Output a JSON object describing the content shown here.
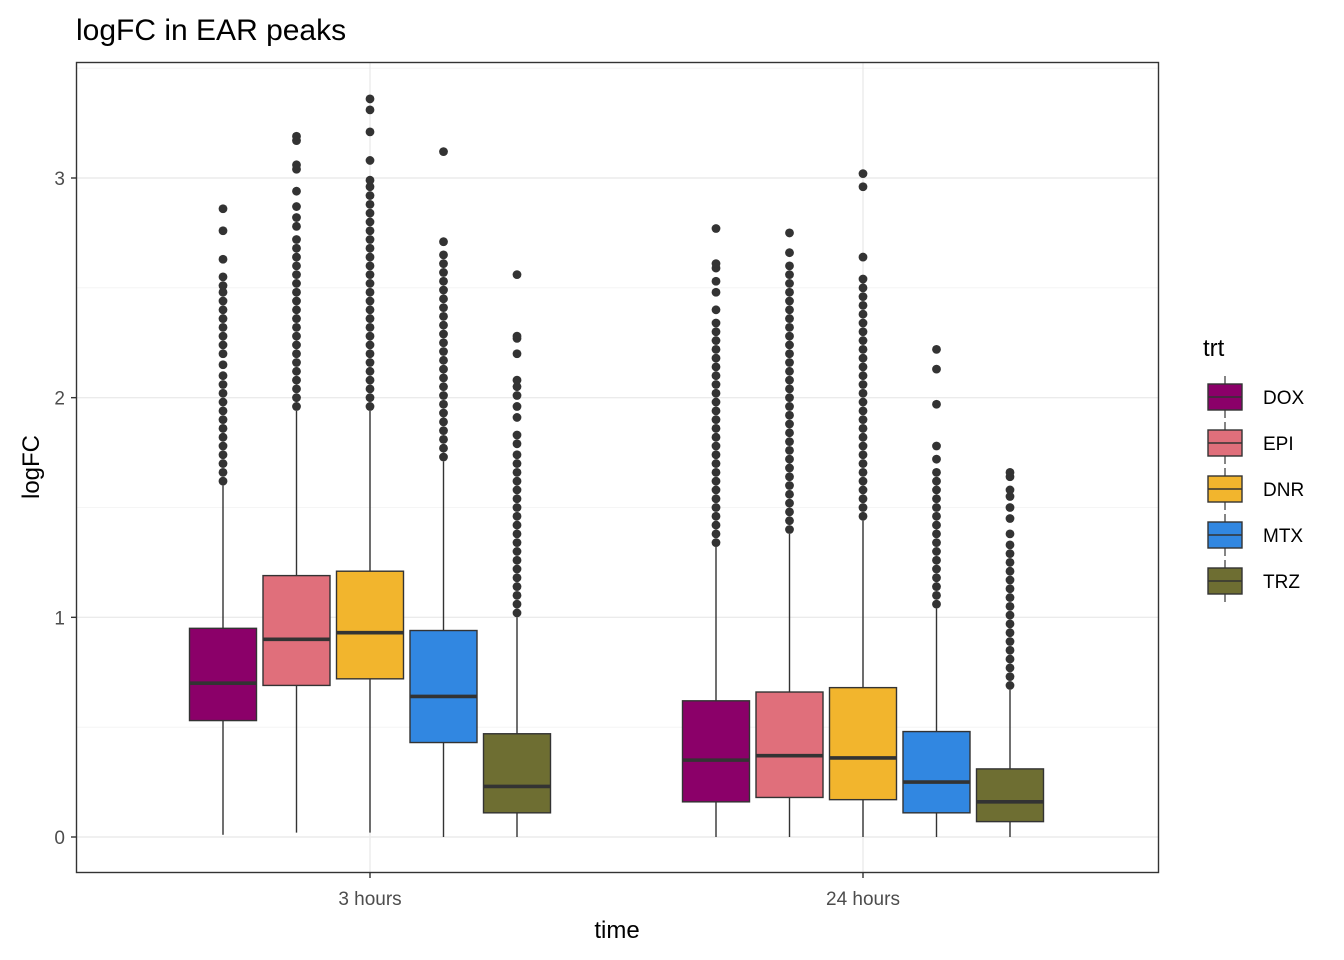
{
  "chart_data": {
    "type": "boxplot",
    "title": "logFC in EAR peaks",
    "xlabel": "time",
    "ylabel": "logFC",
    "categories": [
      "3 hours",
      "24 hours"
    ],
    "yticks": [
      0,
      1,
      2,
      3
    ],
    "ylim": [
      -0.16,
      3.52
    ],
    "grid": true,
    "legend": {
      "title": "trt",
      "position": "right",
      "entries": [
        "DOX",
        "EPI",
        "DNR",
        "MTX",
        "TRZ"
      ]
    },
    "colors": {
      "DOX": "#8b0069",
      "EPI": "#e06f7b",
      "DNR": "#f2b52d",
      "MTX": "#3187e1",
      "TRZ": "#6e6e32",
      "outline": "#333333"
    },
    "series": [
      {
        "name": "DOX",
        "boxes": [
          {
            "group": "3 hours",
            "whisker_low": 0.01,
            "q1": 0.53,
            "median": 0.7,
            "q3": 0.95,
            "whisker_high": 1.6,
            "outliers": [
              1.62,
              1.66,
              1.7,
              1.74,
              1.78,
              1.82,
              1.86,
              1.9,
              1.94,
              1.98,
              2.02,
              2.06,
              2.1,
              2.15,
              2.2,
              2.24,
              2.28,
              2.32,
              2.36,
              2.4,
              2.44,
              2.48,
              2.51,
              2.55,
              2.63,
              2.76,
              2.86
            ]
          },
          {
            "group": "24 hours",
            "whisker_low": 0.0,
            "q1": 0.16,
            "median": 0.35,
            "q3": 0.62,
            "whisker_high": 1.32,
            "outliers": [
              1.34,
              1.38,
              1.42,
              1.46,
              1.5,
              1.54,
              1.58,
              1.62,
              1.66,
              1.7,
              1.74,
              1.78,
              1.82,
              1.86,
              1.9,
              1.94,
              1.98,
              2.02,
              2.06,
              2.1,
              2.14,
              2.18,
              2.22,
              2.26,
              2.3,
              2.34,
              2.4,
              2.48,
              2.53,
              2.59,
              2.61,
              2.77
            ]
          }
        ]
      },
      {
        "name": "EPI",
        "boxes": [
          {
            "group": "3 hours",
            "whisker_low": 0.02,
            "q1": 0.69,
            "median": 0.9,
            "q3": 1.19,
            "whisker_high": 1.94,
            "outliers": [
              1.96,
              2.0,
              2.04,
              2.08,
              2.12,
              2.16,
              2.2,
              2.24,
              2.28,
              2.32,
              2.36,
              2.4,
              2.44,
              2.48,
              2.52,
              2.56,
              2.6,
              2.64,
              2.68,
              2.72,
              2.78,
              2.82,
              2.87,
              2.94,
              3.04,
              3.06,
              3.17,
              3.19
            ]
          },
          {
            "group": "24 hours",
            "whisker_low": 0.0,
            "q1": 0.18,
            "median": 0.37,
            "q3": 0.66,
            "whisker_high": 1.38,
            "outliers": [
              1.4,
              1.44,
              1.48,
              1.52,
              1.56,
              1.6,
              1.64,
              1.68,
              1.72,
              1.76,
              1.8,
              1.84,
              1.88,
              1.92,
              1.96,
              2.0,
              2.04,
              2.08,
              2.12,
              2.16,
              2.2,
              2.24,
              2.28,
              2.32,
              2.36,
              2.4,
              2.44,
              2.48,
              2.52,
              2.56,
              2.6,
              2.66,
              2.75
            ]
          }
        ]
      },
      {
        "name": "DNR",
        "boxes": [
          {
            "group": "3 hours",
            "whisker_low": 0.02,
            "q1": 0.72,
            "median": 0.93,
            "q3": 1.21,
            "whisker_high": 1.94,
            "outliers": [
              1.96,
              2.0,
              2.04,
              2.08,
              2.12,
              2.16,
              2.2,
              2.24,
              2.28,
              2.32,
              2.36,
              2.4,
              2.44,
              2.48,
              2.52,
              2.56,
              2.6,
              2.64,
              2.68,
              2.72,
              2.76,
              2.8,
              2.84,
              2.88,
              2.92,
              2.96,
              2.99,
              3.08,
              3.21,
              3.31,
              3.36
            ]
          },
          {
            "group": "24 hours",
            "whisker_low": 0.0,
            "q1": 0.17,
            "median": 0.36,
            "q3": 0.68,
            "whisker_high": 1.44,
            "outliers": [
              1.46,
              1.5,
              1.54,
              1.58,
              1.62,
              1.66,
              1.7,
              1.74,
              1.78,
              1.82,
              1.86,
              1.9,
              1.94,
              1.98,
              2.02,
              2.06,
              2.1,
              2.14,
              2.18,
              2.22,
              2.26,
              2.3,
              2.34,
              2.38,
              2.42,
              2.46,
              2.5,
              2.54,
              2.64,
              2.96,
              3.02
            ]
          }
        ]
      },
      {
        "name": "MTX",
        "boxes": [
          {
            "group": "3 hours",
            "whisker_low": 0.0,
            "q1": 0.43,
            "median": 0.64,
            "q3": 0.94,
            "whisker_high": 1.71,
            "outliers": [
              1.73,
              1.77,
              1.81,
              1.85,
              1.89,
              1.93,
              1.97,
              2.01,
              2.05,
              2.09,
              2.13,
              2.17,
              2.21,
              2.25,
              2.29,
              2.33,
              2.37,
              2.41,
              2.45,
              2.49,
              2.53,
              2.57,
              2.61,
              2.65,
              2.71,
              3.12
            ]
          },
          {
            "group": "24 hours",
            "whisker_low": 0.0,
            "q1": 0.11,
            "median": 0.25,
            "q3": 0.48,
            "whisker_high": 1.04,
            "outliers": [
              1.06,
              1.1,
              1.14,
              1.18,
              1.22,
              1.26,
              1.3,
              1.34,
              1.38,
              1.42,
              1.46,
              1.5,
              1.54,
              1.58,
              1.62,
              1.66,
              1.72,
              1.78,
              1.97,
              2.13,
              2.22
            ]
          }
        ]
      },
      {
        "name": "TRZ",
        "boxes": [
          {
            "group": "3 hours",
            "whisker_low": 0.0,
            "q1": 0.11,
            "median": 0.23,
            "q3": 0.47,
            "whisker_high": 1.0,
            "outliers": [
              1.02,
              1.06,
              1.1,
              1.14,
              1.18,
              1.22,
              1.26,
              1.3,
              1.34,
              1.38,
              1.42,
              1.46,
              1.5,
              1.54,
              1.58,
              1.62,
              1.66,
              1.7,
              1.74,
              1.79,
              1.83,
              1.91,
              1.96,
              2.01,
              2.05,
              2.08,
              2.2,
              2.27,
              2.28,
              2.56
            ]
          },
          {
            "group": "24 hours",
            "whisker_low": 0.0,
            "q1": 0.07,
            "median": 0.16,
            "q3": 0.31,
            "whisker_high": 0.67,
            "outliers": [
              0.69,
              0.73,
              0.77,
              0.81,
              0.85,
              0.89,
              0.93,
              0.97,
              1.01,
              1.05,
              1.09,
              1.13,
              1.17,
              1.21,
              1.25,
              1.29,
              1.33,
              1.38,
              1.45,
              1.5,
              1.55,
              1.58,
              1.64,
              1.66
            ]
          }
        ]
      }
    ]
  }
}
